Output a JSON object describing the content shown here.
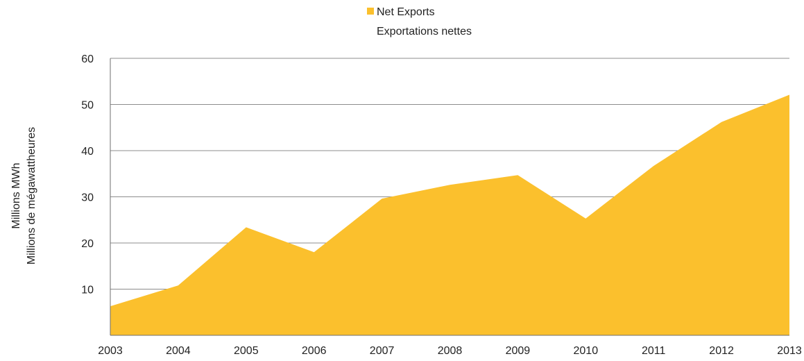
{
  "chart_data": {
    "type": "area",
    "title": "",
    "x": [
      "2003",
      "2004",
      "2005",
      "2006",
      "2007",
      "2008",
      "2009",
      "2010",
      "2011",
      "2012",
      "2013"
    ],
    "series": [
      {
        "name_lines": [
          "Net Exports",
          "Exportations nettes"
        ],
        "color": "#FBC02D",
        "values": [
          6.3,
          10.8,
          23.4,
          18.0,
          29.6,
          32.6,
          34.7,
          25.3,
          36.7,
          46.2,
          52.1
        ]
      }
    ],
    "ylabel_lines": [
      "Millions MWh",
      "Millions de mégawattheures"
    ],
    "xlabel": "",
    "ylim": [
      0,
      60
    ],
    "yticks": [
      10,
      20,
      30,
      40,
      50,
      60
    ],
    "grid": true,
    "legend_position": "top-center"
  }
}
